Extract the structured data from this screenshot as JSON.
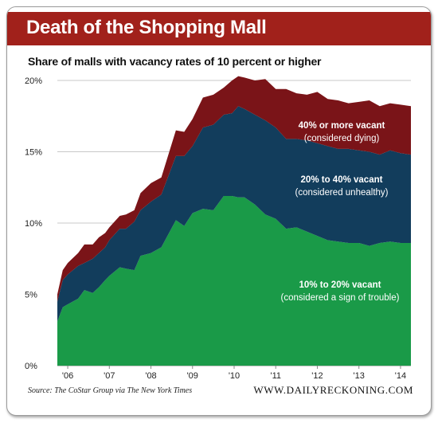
{
  "header": {
    "title": "Death of the Shopping Mall",
    "subtitle": "Share of malls with vacancy rates of 10 percent or higher"
  },
  "footer": {
    "source": "Source: The CoStar Group via The New York Times",
    "brand": "WWW.DAILYRECKONING.COM"
  },
  "colors": {
    "header_bg": "#a1211b",
    "band_green": "#1a9a48",
    "band_blue": "#123d5c",
    "band_red": "#7a1418",
    "grid": "#c8c8c8"
  },
  "chart_data": {
    "type": "area",
    "stacked": true,
    "title": "Share of malls with vacancy rates of 10 percent or higher",
    "xlabel": "",
    "ylabel": "",
    "ylim": [
      0,
      20
    ],
    "yticks": [
      0,
      5,
      10,
      15,
      20
    ],
    "ytick_labels": [
      "0%",
      "5%",
      "10%",
      "15%",
      "20%"
    ],
    "xticks": [
      2006,
      2007,
      2008,
      2009,
      2010,
      2011,
      2012,
      2013,
      2014
    ],
    "xtick_labels": [
      "'06",
      "'07",
      "'08",
      "'09",
      "'10",
      "'11",
      "'12",
      "'13",
      "'14"
    ],
    "grid": "horizontal",
    "x": [
      2005.75,
      2005.88,
      2006.0,
      2006.25,
      2006.4,
      2006.6,
      2006.75,
      2006.9,
      2007.0,
      2007.25,
      2007.4,
      2007.6,
      2007.75,
      2008.0,
      2008.25,
      2008.6,
      2008.8,
      2009.0,
      2009.25,
      2009.5,
      2009.75,
      2009.95,
      2010.1,
      2010.25,
      2010.5,
      2010.75,
      2011.0,
      2011.25,
      2011.5,
      2011.75,
      2012.0,
      2012.25,
      2012.5,
      2012.75,
      2013.0,
      2013.25,
      2013.5,
      2013.75,
      2014.0,
      2014.25
    ],
    "series": [
      {
        "name": "10% to 20% vacant",
        "note": "(considered a sign of trouble)",
        "color": "#1a9a48",
        "values": [
          3.1,
          4.1,
          4.3,
          4.7,
          5.3,
          5.1,
          5.5,
          6.0,
          6.3,
          6.9,
          6.8,
          6.7,
          7.7,
          7.9,
          8.3,
          10.2,
          9.8,
          10.7,
          11.0,
          10.9,
          11.9,
          11.9,
          11.8,
          11.8,
          11.3,
          10.6,
          10.3,
          9.6,
          9.7,
          9.4,
          9.1,
          8.8,
          8.7,
          8.6,
          8.6,
          8.4,
          8.6,
          8.7,
          8.6,
          8.6
        ]
      },
      {
        "name": "20% to 40% vacant",
        "note": "(considered unhealthy)",
        "color": "#123d5c",
        "values": [
          1.4,
          1.9,
          2.1,
          2.3,
          1.9,
          2.4,
          2.4,
          2.3,
          2.5,
          2.7,
          2.8,
          3.4,
          3.2,
          3.6,
          3.7,
          4.5,
          4.9,
          4.7,
          5.7,
          6.0,
          5.7,
          5.8,
          6.4,
          6.2,
          6.3,
          6.6,
          6.4,
          6.3,
          6.2,
          6.4,
          6.5,
          6.6,
          6.5,
          6.6,
          6.5,
          6.6,
          6.2,
          6.4,
          6.3,
          6.2
        ]
      },
      {
        "name": "40% or more vacant",
        "note": "(considered dying)",
        "color": "#7a1418",
        "values": [
          0.5,
          0.7,
          0.8,
          0.9,
          1.3,
          1.0,
          1.1,
          1.0,
          0.9,
          0.9,
          1.0,
          0.8,
          1.2,
          1.3,
          1.2,
          1.8,
          1.7,
          1.9,
          2.1,
          2.1,
          1.9,
          2.3,
          2.1,
          2.2,
          2.4,
          2.9,
          2.7,
          3.5,
          3.2,
          3.2,
          3.6,
          3.3,
          3.4,
          3.2,
          3.4,
          3.6,
          3.4,
          3.3,
          3.4,
          3.4
        ]
      }
    ]
  }
}
